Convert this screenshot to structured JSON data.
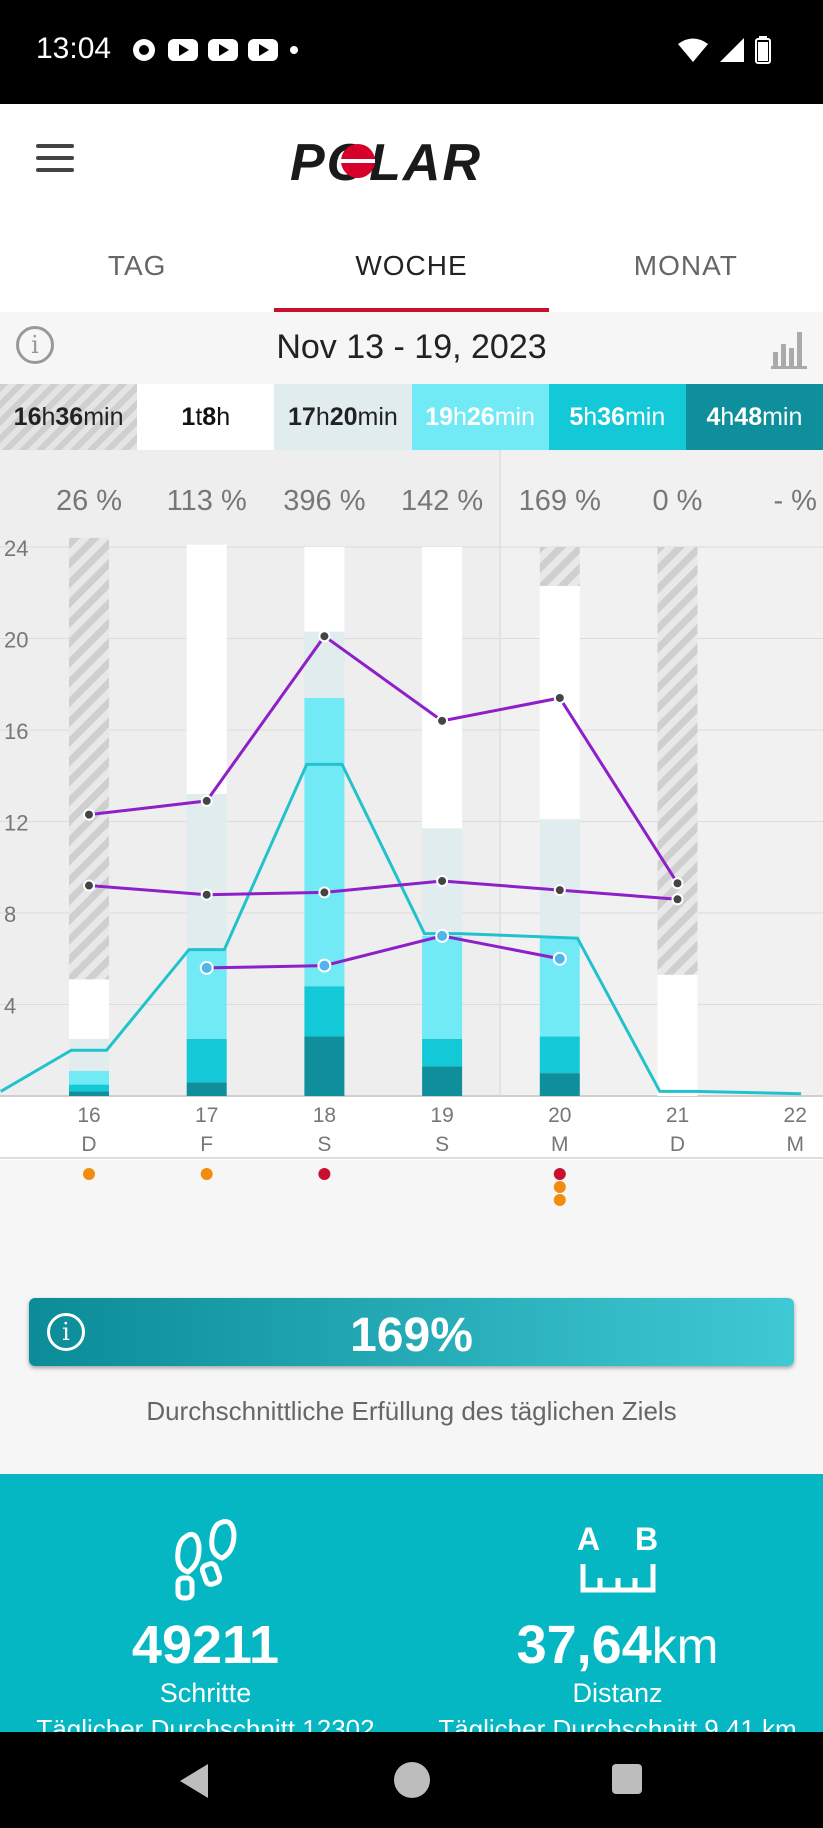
{
  "status": {
    "time": "13:04"
  },
  "appbar": {
    "menu_icon": "hamburger-icon",
    "logo_text": "POLAR"
  },
  "tabs": [
    {
      "label": "TAG",
      "active": false
    },
    {
      "label": "WOCHE",
      "active": true
    },
    {
      "label": "MONAT",
      "active": false
    }
  ],
  "datebar": {
    "range": "Nov 13 - 19, 2023"
  },
  "legend": [
    {
      "h": "16",
      "m": "36",
      "hu": "h",
      "mu": "min"
    },
    {
      "h": "1",
      "m": "8",
      "hu": "t",
      "mu": "h"
    },
    {
      "h": "17",
      "m": "20",
      "hu": "h",
      "mu": "min"
    },
    {
      "h": "19",
      "m": "26",
      "hu": "h",
      "mu": "min"
    },
    {
      "h": "5",
      "m": "36",
      "hu": "h",
      "mu": "min"
    },
    {
      "h": "4",
      "m": "48",
      "hu": "h",
      "mu": "min"
    }
  ],
  "colors": {
    "hatch": "#d9d9d9",
    "white_seg": "#ffffff",
    "light_seg": "#e0ecee",
    "cyan_light": "#72eaf5",
    "cyan_mid": "#14c9d7",
    "cyan_dark": "#0e8f9b",
    "purple": "#8e1fc9",
    "teal_line": "#22c2cc",
    "red_dot": "#c8102e",
    "orange_dot": "#f28c0f"
  },
  "chart_data": {
    "type": "bar",
    "ylim": [
      0,
      24
    ],
    "yticks": [
      4,
      8,
      12,
      16,
      20,
      24
    ],
    "days": [
      {
        "date": "16",
        "wd": "D",
        "pct": "26 %",
        "seg": [
          0.2,
          0.3,
          0.6,
          1.4,
          2.6,
          2.7,
          16.6
        ]
      },
      {
        "date": "17",
        "wd": "F",
        "pct": "113 %",
        "seg": [
          0.6,
          1.9,
          3.9,
          6.8,
          10.9,
          0
        ]
      },
      {
        "date": "18",
        "wd": "S",
        "pct": "396 %",
        "seg": [
          2.6,
          2.2,
          12.6,
          2.9,
          3.7,
          0
        ]
      },
      {
        "date": "19",
        "wd": "S",
        "pct": "142 %",
        "seg": [
          1.3,
          1.2,
          4.5,
          4.7,
          12.3,
          0
        ]
      },
      {
        "date": "20",
        "wd": "M",
        "pct": "169 %",
        "seg": [
          1.0,
          1.6,
          4.3,
          5.2,
          10.2,
          1.7
        ]
      },
      {
        "date": "21",
        "wd": "D",
        "pct": "0 %",
        "seg": [
          0,
          0,
          0,
          0,
          5.3,
          18.7
        ]
      },
      {
        "date": "22",
        "wd": "M",
        "pct": "- %",
        "seg": null
      }
    ],
    "series": [
      {
        "values": [
          12.3,
          12.9,
          20.1,
          16.4,
          17.4,
          9.3
        ]
      },
      {
        "values": [
          9.2,
          8.8,
          8.9,
          9.4,
          9.0,
          8.6
        ]
      },
      {
        "values": [
          null,
          5.6,
          5.7,
          7.0,
          6.0,
          null
        ]
      }
    ],
    "steps_line": [
      [
        -0.75,
        0.2
      ],
      [
        -0.15,
        2.0
      ],
      [
        0.15,
        2.0
      ],
      [
        0.85,
        6.4
      ],
      [
        1.15,
        6.4
      ],
      [
        1.85,
        14.5
      ],
      [
        2.15,
        14.5
      ],
      [
        2.85,
        7.1
      ],
      [
        3.15,
        7.1
      ],
      [
        4.15,
        6.9
      ],
      [
        4.85,
        0.2
      ],
      [
        5.15,
        0.2
      ],
      [
        6.05,
        0.1
      ]
    ],
    "event_dots": [
      {
        "day": 0,
        "colors": [
          "orange"
        ]
      },
      {
        "day": 1,
        "colors": [
          "orange"
        ]
      },
      {
        "day": 2,
        "colors": [
          "red"
        ]
      },
      {
        "day": 4,
        "colors": [
          "red",
          "orange",
          "orange"
        ]
      }
    ]
  },
  "goal": {
    "percent": "169%",
    "caption": "Durchschnittliche Erfüllung des täglichen Ziels"
  },
  "stats": {
    "steps": {
      "icon": "footsteps-icon",
      "value": "49211",
      "label": "Schritte",
      "avg": "Täglicher Durchschnitt 12302"
    },
    "distance": {
      "icon": "ruler-icon",
      "value": "37,64",
      "unit": "km",
      "label": "Distanz",
      "avg": "Täglicher Durchschnitt 9,41 km",
      "icon_a": "A",
      "icon_b": "B"
    }
  }
}
